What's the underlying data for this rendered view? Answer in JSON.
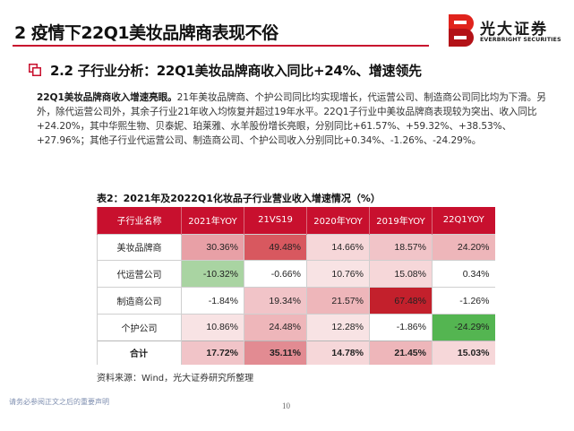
{
  "page_title": "2 疫情下22Q1美妆品牌商表现不俗",
  "brand": {
    "name_cn": "光大证券",
    "name_en": "EVERBRIGHT SECURITIES",
    "colors": {
      "red": "#c8102e",
      "dark": "#222222"
    }
  },
  "section": {
    "icon": "nested-squares-icon",
    "heading": "2.2 子行业分析：22Q1美妆品牌商收入同比+24%、增速领先"
  },
  "paragraph": {
    "lead": "22Q1美妆品牌商收入增速亮眼。",
    "text": "21年美妆品牌商、个护公司同比均实现增长，代运营公司、制造商公司同比均为下滑。另外，除代运营公司外，其余子行业21年收入均恢复并超过19年水平。22Q1子行业中美妆品牌商表现较为突出、收入同比+24.20%，其中华熙生物、贝泰妮、珀莱雅、水羊股份增长亮眼，分别同比+61.57%、+59.32%、+38.53%、+27.96%；其他子行业代运营公司、制造商公司、个护公司收入分别同比+0.34%、-1.26%、-24.29%。"
  },
  "table": {
    "caption": "表2：2021年及2022Q1化妆品子行业营业收入增速情况（%）",
    "headers": [
      "子行业名称",
      "2021年YOY",
      "21VS19",
      "2020年YOY",
      "2019年YOY",
      "22Q1YOY"
    ],
    "rows": [
      {
        "category": "美妆品牌商",
        "cells": [
          {
            "value": "30.36%",
            "color": "#e8a0a6"
          },
          {
            "value": "49.48%",
            "color": "#d8585f"
          },
          {
            "value": "14.66%",
            "color": "#f6d7d9"
          },
          {
            "value": "18.57%",
            "color": "#f1c4c8"
          },
          {
            "value": "24.20%",
            "color": "#eeb6ba"
          }
        ]
      },
      {
        "category": "代运营公司",
        "cells": [
          {
            "value": "-10.32%",
            "color": "#a9d4a2"
          },
          {
            "value": "-0.66%",
            "color": "#ffffff"
          },
          {
            "value": "10.76%",
            "color": "#f8e3e4"
          },
          {
            "value": "15.08%",
            "color": "#f6d7d9"
          },
          {
            "value": "0.34%",
            "color": "#ffffff"
          }
        ]
      },
      {
        "category": "制造商公司",
        "cells": [
          {
            "value": "-1.84%",
            "color": "#ffffff"
          },
          {
            "value": "19.34%",
            "color": "#f1c4c8"
          },
          {
            "value": "21.57%",
            "color": "#eeb6ba"
          },
          {
            "value": "67.48%",
            "color": "#c3202c"
          },
          {
            "value": "-1.26%",
            "color": "#ffffff"
          }
        ]
      },
      {
        "category": "个护公司",
        "cells": [
          {
            "value": "10.86%",
            "color": "#f8e3e4"
          },
          {
            "value": "24.48%",
            "color": "#eeb6ba"
          },
          {
            "value": "12.28%",
            "color": "#f8e3e4"
          },
          {
            "value": "-1.86%",
            "color": "#ffffff"
          },
          {
            "value": "-24.29%",
            "color": "#54b551"
          }
        ]
      }
    ],
    "total_row": {
      "category": "合计",
      "cells": [
        {
          "value": "17.72%",
          "color": "#f1c4c8"
        },
        {
          "value": "35.11%",
          "color": "#e28b92"
        },
        {
          "value": "14.78%",
          "color": "#f6d7d9"
        },
        {
          "value": "21.45%",
          "color": "#eeb6ba"
        },
        {
          "value": "15.03%",
          "color": "#f6d7d9"
        }
      ]
    }
  },
  "source": "资料来源：Wind，光大证券研究所整理",
  "disclaimer": "请务必参阅正文之后的重要声明",
  "page_number": "10"
}
